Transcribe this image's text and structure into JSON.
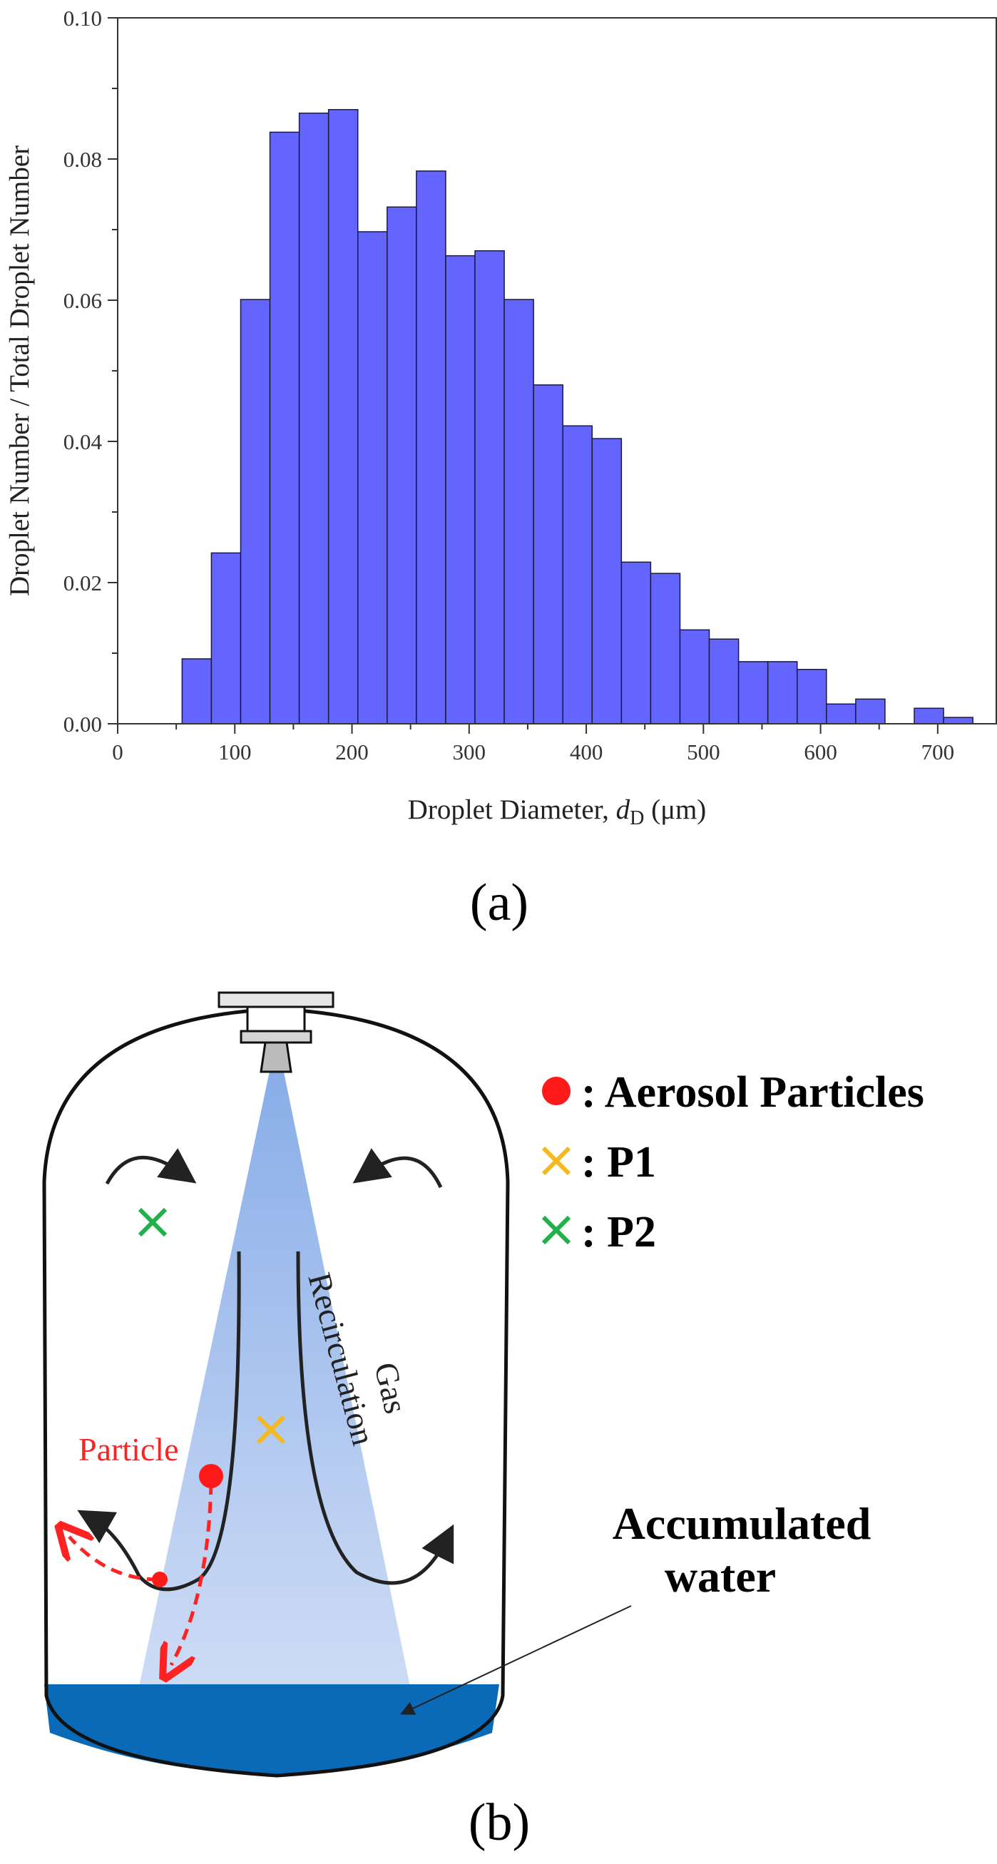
{
  "panel_a": {
    "caption": "(a)",
    "chart_data": {
      "type": "bar",
      "title": "",
      "xlabel_prefix": "Droplet Diameter, ",
      "xlabel_var": "d",
      "xlabel_sub": "D",
      "xlabel_unit": " (μm)",
      "ylabel": "Droplet Number / Total Droplet Number",
      "xlim": [
        0,
        750
      ],
      "ylim": [
        0,
        0.1
      ],
      "x_ticks": [
        "0",
        "100",
        "200",
        "300",
        "400",
        "500",
        "600",
        "700"
      ],
      "x_tick_values": [
        0,
        100,
        200,
        300,
        400,
        500,
        600,
        700
      ],
      "y_ticks": [
        "0.00",
        "0.02",
        "0.04",
        "0.06",
        "0.08",
        "0.10"
      ],
      "y_tick_values": [
        0,
        0.02,
        0.04,
        0.06,
        0.08,
        0.1
      ],
      "bin_width": 25,
      "bin_starts": [
        55,
        80,
        105,
        130,
        155,
        180,
        205,
        230,
        255,
        280,
        305,
        330,
        355,
        380,
        405,
        430,
        455,
        480,
        505,
        530,
        555,
        580,
        605,
        630,
        680,
        705
      ],
      "values": [
        0.0092,
        0.0242,
        0.0601,
        0.0838,
        0.0865,
        0.087,
        0.0697,
        0.0732,
        0.0783,
        0.0663,
        0.067,
        0.0601,
        0.048,
        0.0422,
        0.0404,
        0.0229,
        0.0213,
        0.0133,
        0.012,
        0.0088,
        0.0088,
        0.0077,
        0.0028,
        0.0035,
        0.0022,
        0.0009
      ],
      "bar_color": "#6464ff",
      "grid": false
    }
  },
  "panel_b": {
    "caption": "(b)",
    "legend": [
      {
        "marker": "dot",
        "color": "#ff1a1a",
        "label": ": Aerosol Particles"
      },
      {
        "marker": "cross",
        "color": "#f5b820",
        "label": ": P1"
      },
      {
        "marker": "cross",
        "color": "#22b04b",
        "label": ": P2"
      }
    ],
    "gas_label": "Gas",
    "recirculation_label": "Recirculation",
    "particle_label": "Particle",
    "accumulated_line1": "Accumulated",
    "accumulated_line2": "water",
    "colors": {
      "spray": "#7ea6e6",
      "water": "#0a6ab8",
      "particle": "#ff1a1a",
      "p1": "#f5b820",
      "p2": "#22b04b"
    }
  }
}
